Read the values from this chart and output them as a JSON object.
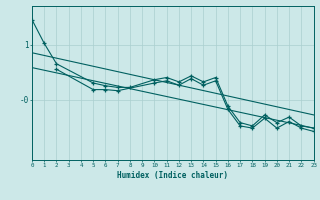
{
  "xlabel": "Humidex (Indice chaleur)",
  "background_color": "#cce8e8",
  "grid_color": "#aacfcf",
  "line_color": "#006060",
  "x_min": 0,
  "x_max": 23,
  "y_min": -1.1,
  "y_max": 1.7,
  "ytick_positions": [
    1.0,
    0.0
  ],
  "ytick_labels": [
    "1",
    "-0"
  ],
  "line1_x": [
    0,
    1,
    2,
    5,
    6,
    7,
    8,
    10,
    11,
    12,
    13,
    14,
    15,
    16,
    17,
    18,
    19,
    20,
    21,
    22,
    23
  ],
  "line1_y": [
    1.45,
    1.02,
    0.65,
    0.3,
    0.25,
    0.22,
    0.22,
    0.36,
    0.4,
    0.32,
    0.43,
    0.32,
    0.4,
    -0.12,
    -0.42,
    -0.48,
    -0.28,
    -0.42,
    -0.32,
    -0.48,
    -0.52
  ],
  "line2_x": [
    0,
    23
  ],
  "line2_y": [
    0.58,
    -0.52
  ],
  "line3_x": [
    0,
    23
  ],
  "line3_y": [
    0.85,
    -0.28
  ],
  "line4_x": [
    2,
    5,
    6,
    7,
    10,
    11,
    12,
    13,
    14,
    15,
    16,
    17,
    18,
    19,
    20,
    21,
    22,
    23
  ],
  "line4_y": [
    0.55,
    0.18,
    0.18,
    0.16,
    0.3,
    0.34,
    0.26,
    0.38,
    0.26,
    0.34,
    -0.18,
    -0.48,
    -0.52,
    -0.34,
    -0.52,
    -0.4,
    -0.52,
    -0.58
  ]
}
